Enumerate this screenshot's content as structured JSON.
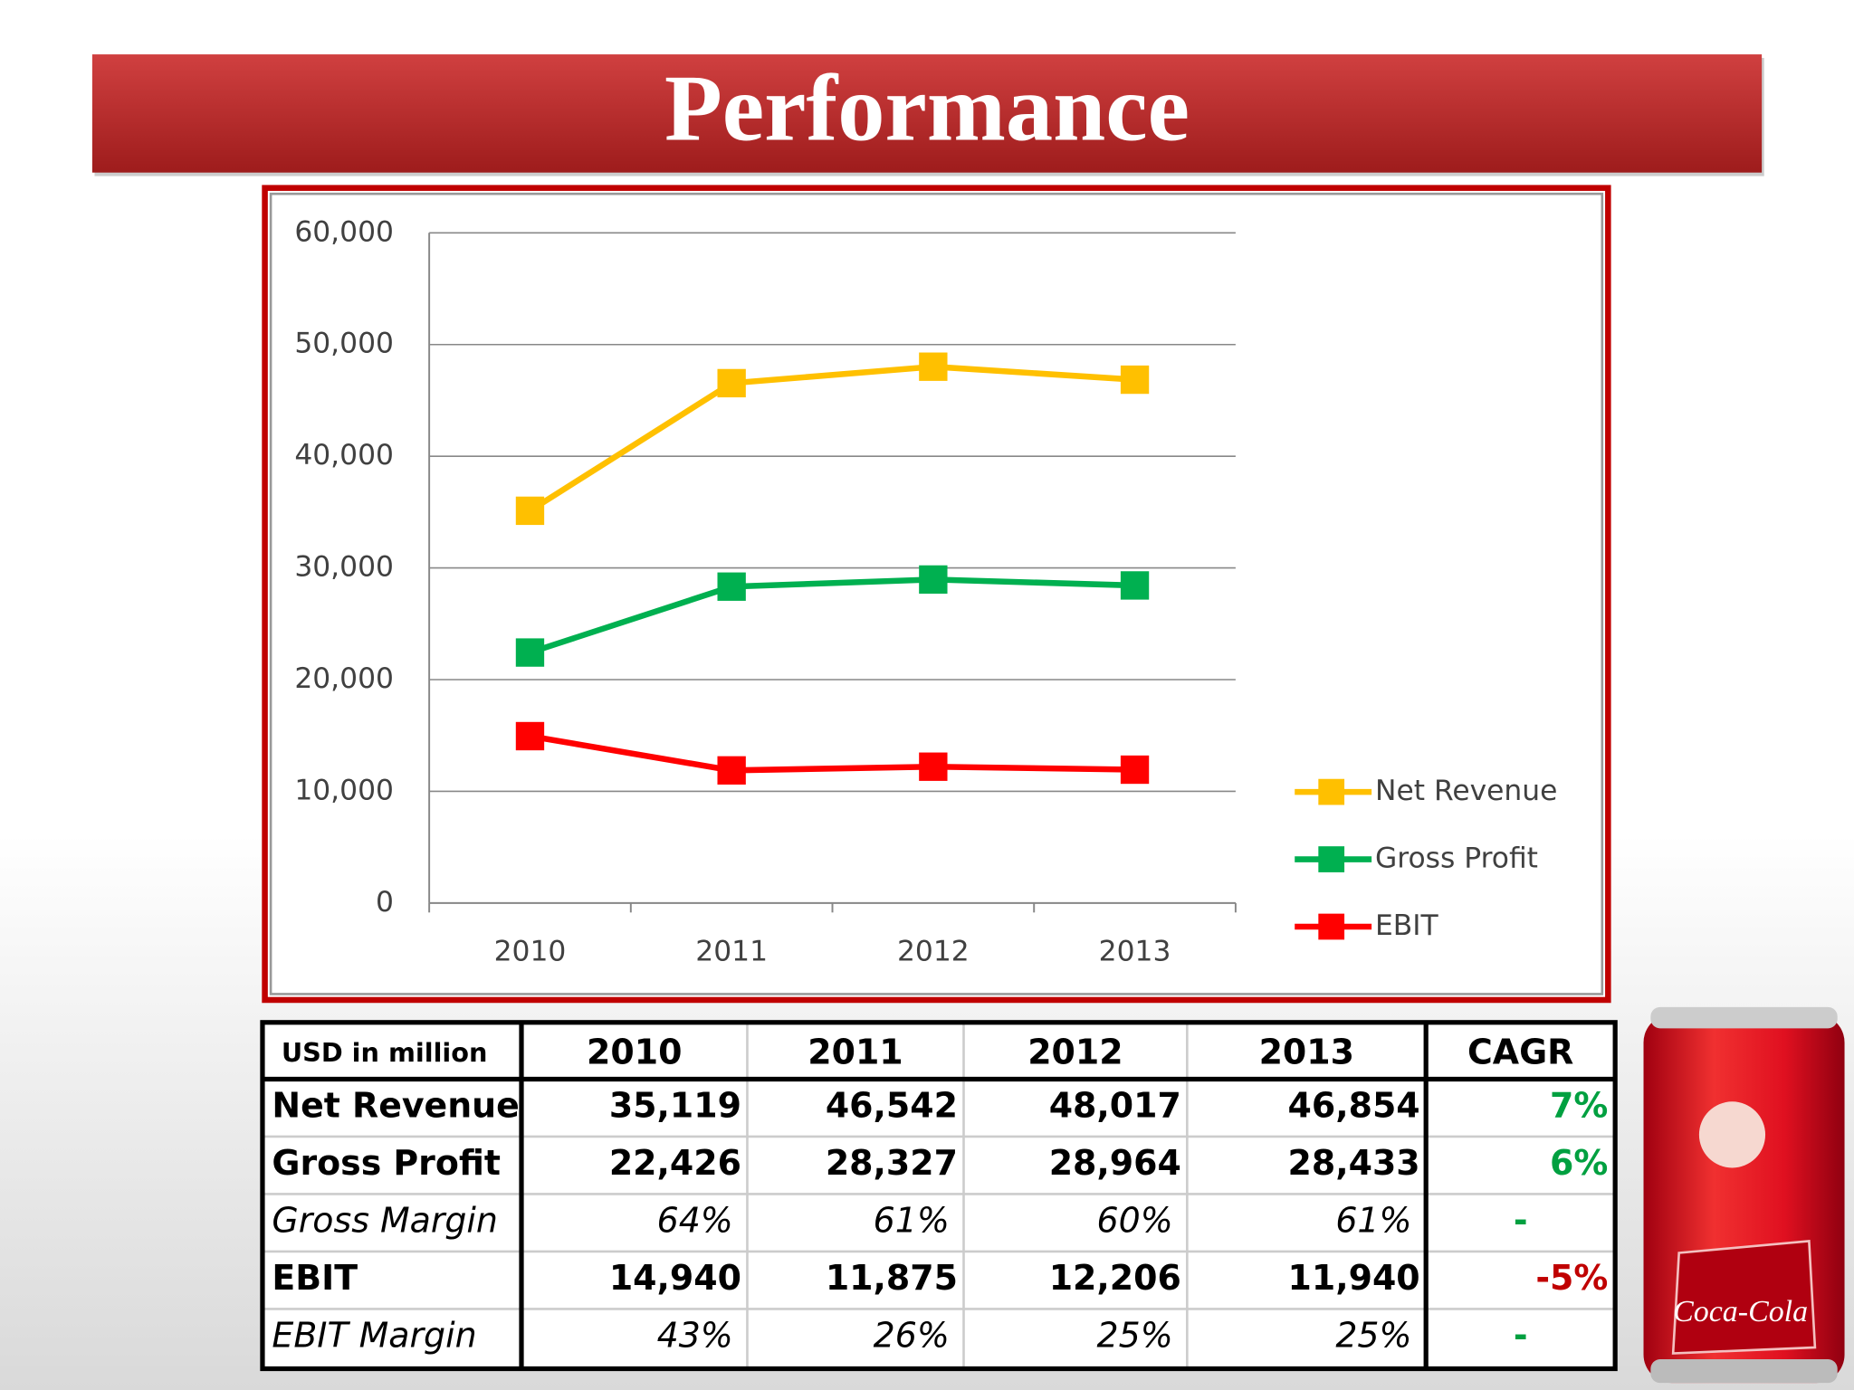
{
  "title": "Performance",
  "chart_data": {
    "type": "line",
    "categories": [
      "2010",
      "2011",
      "2012",
      "2013"
    ],
    "series": [
      {
        "name": "Net Revenue",
        "color": "#ffc000",
        "values": [
          35119,
          46542,
          48017,
          46854
        ]
      },
      {
        "name": "Gross Profit",
        "color": "#00b050",
        "values": [
          22426,
          28327,
          28964,
          28433
        ]
      },
      {
        "name": "EBIT",
        "color": "#ff0000",
        "values": [
          14940,
          11875,
          12206,
          11940
        ]
      }
    ],
    "ylim": [
      0,
      60000
    ],
    "yticks": [
      0,
      {
        "value": 10000,
        "label": "10,000"
      },
      {
        "value": 20000,
        "label": "20,000"
      },
      {
        "value": 30000,
        "label": "30,000"
      },
      {
        "value": 40000,
        "label": "40,000"
      },
      {
        "value": 50000,
        "label": "50,000"
      },
      {
        "value": 60000,
        "label": "60,000"
      }
    ],
    "grid": true,
    "legend": "right"
  },
  "table": {
    "header": [
      "USD in million",
      "2010",
      "2011",
      "2012",
      "2013",
      "CAGR"
    ],
    "rows": [
      [
        "Net Revenue",
        "35,119",
        "46,542",
        "48,017",
        "46,854",
        "7%"
      ],
      [
        "Gross Profit",
        "22,426",
        "28,327",
        "28,964",
        "28,433",
        "6%"
      ],
      [
        "Gross Margin",
        "64%",
        "61%",
        "60%",
        "61%",
        "-"
      ],
      [
        "EBIT",
        "14,940",
        "11,875",
        "12,206",
        "11,940",
        "-5%"
      ],
      [
        "EBIT Margin",
        "43%",
        "26%",
        "25%",
        "25%",
        "-"
      ]
    ]
  },
  "can": {
    "label": "Coca-Cola"
  }
}
